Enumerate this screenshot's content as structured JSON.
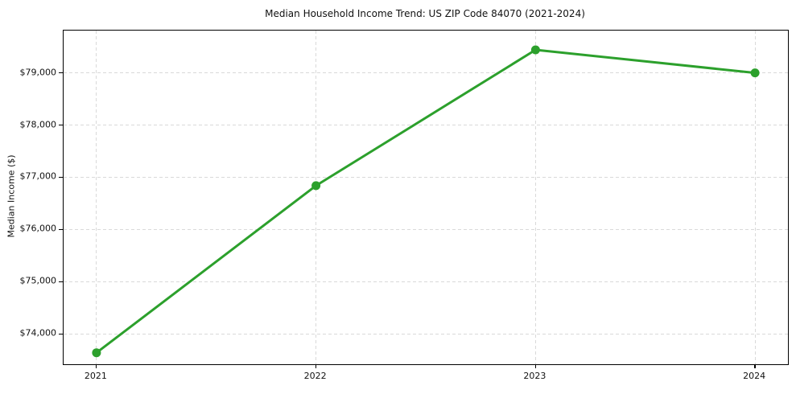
{
  "chart_data": {
    "type": "line",
    "title": "Median Household Income Trend: US ZIP Code 84070 (2021-2024)",
    "xlabel": "",
    "ylabel": "Median Income ($)",
    "x": [
      2021,
      2022,
      2023,
      2024
    ],
    "x_tick_labels": [
      "2021",
      "2022",
      "2023",
      "2024"
    ],
    "series": [
      {
        "name": "Median Household Income",
        "values": [
          73640,
          76840,
          79440,
          79000
        ],
        "color": "#2ca02c",
        "marker": "circle",
        "line_width": 3
      }
    ],
    "y_ticks": [
      74000,
      75000,
      76000,
      77000,
      78000,
      79000
    ],
    "y_tick_labels": [
      "$74,000",
      "$75,000",
      "$76,000",
      "$77,000",
      "$78,000",
      "$79,000"
    ],
    "xlim": [
      2020.85,
      2024.15
    ],
    "ylim": [
      73420,
      79810
    ],
    "grid": "both-dashed",
    "legend": "none",
    "styles": {
      "line_color": "#2ca02c",
      "grid_color": "#d9d9d9",
      "spine_color": "#000000",
      "text_color": "#111111",
      "background": "#ffffff"
    }
  }
}
